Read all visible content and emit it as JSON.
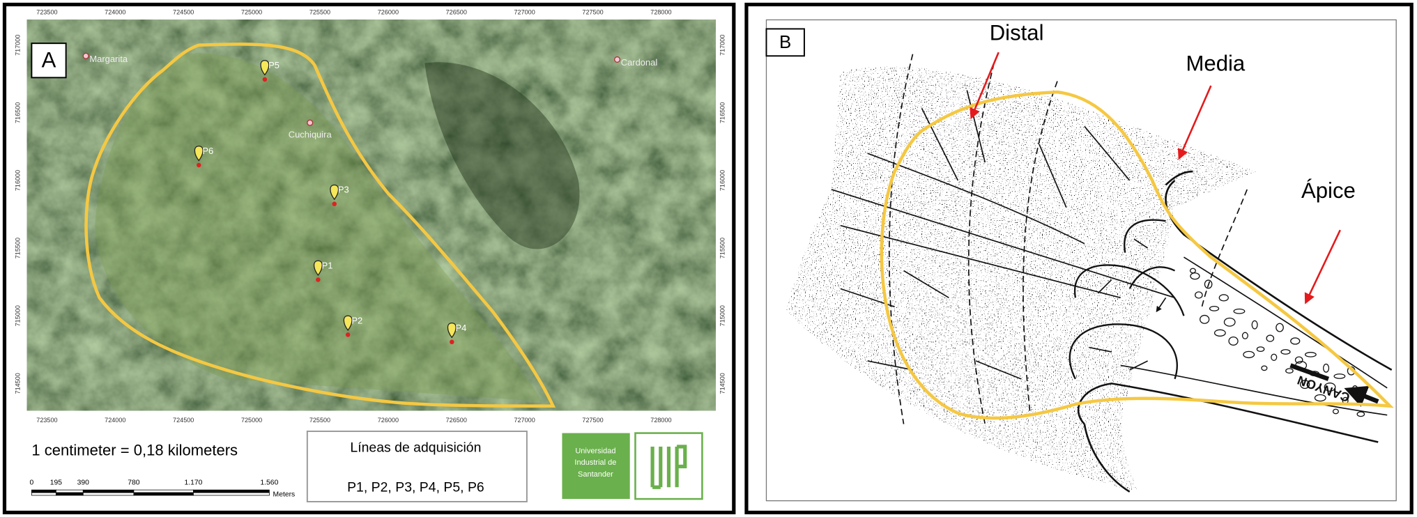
{
  "panel_a": {
    "label": "A",
    "x_ticks": [
      723500,
      724000,
      724500,
      725000,
      725500,
      726000,
      726500,
      727000,
      727500,
      728000
    ],
    "y_ticks": [
      717000,
      716500,
      716000,
      715500,
      715000,
      714500
    ],
    "places": [
      "Margarita",
      "Cardonal",
      "Cuchiquira"
    ],
    "points": [
      "P1",
      "P2",
      "P3",
      "P4",
      "P5",
      "P6"
    ],
    "scale_text": "1 centimeter = 0,18 kilometers",
    "scale_bar": {
      "labels": [
        "0",
        "195",
        "390",
        "780",
        "1.170",
        "1.560"
      ],
      "unit": "Meters"
    },
    "legend": {
      "title": "Líneas de adquisición",
      "text": "P1, P2, P3, P4, P5, P6"
    },
    "logo_text": [
      "Universidad",
      "Industrial de",
      "Santander"
    ]
  },
  "panel_b": {
    "label": "B",
    "zones": [
      "Distal",
      "Media",
      "Ápice"
    ],
    "canyon": "CANYON"
  }
}
